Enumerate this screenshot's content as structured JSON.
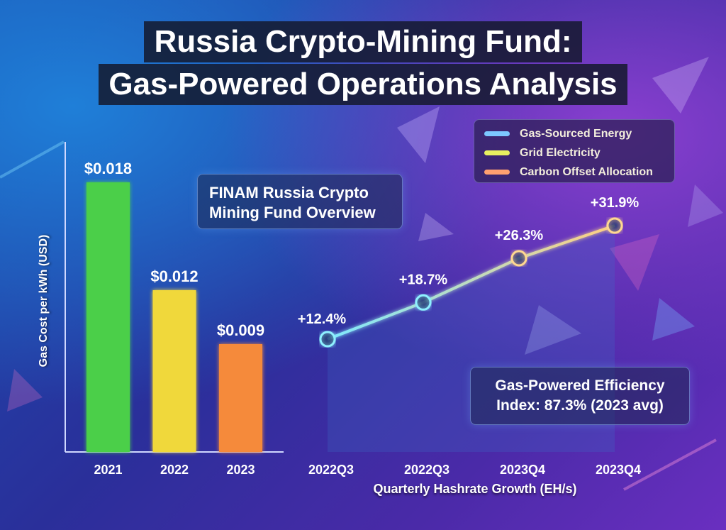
{
  "title_line1": "Russia Crypto-Mining Fund:",
  "title_line2": "Gas-Powered Operations Analysis",
  "overview_box": "FINAM Russia Crypto Mining Fund Overview",
  "efficiency_box": "Gas-Powered Efficiency Index: 87.3% (2023 avg)",
  "legend": [
    {
      "label": "Gas-Sourced Energy",
      "color": "#7cc8ff"
    },
    {
      "label": "Grid Electricity",
      "color": "#e8f060"
    },
    {
      "label": "Carbon Offset Allocation",
      "color": "#ffa070"
    }
  ],
  "chart_data": [
    {
      "type": "bar",
      "categories": [
        "2021",
        "2022",
        "2023"
      ],
      "values": [
        0.018,
        0.012,
        0.009
      ],
      "data_labels": [
        "$0.018",
        "$0.012",
        "$0.009"
      ],
      "ylabel": "Gas Cost per kWh (USD)",
      "colors": [
        "#4ccf4a",
        "#f0d83a",
        "#f58a3a"
      ],
      "ylim": [
        0.003,
        0.018
      ]
    },
    {
      "type": "line",
      "categories": [
        "2022Q3",
        "2022Q3",
        "2023Q4",
        "2023Q4"
      ],
      "values": [
        12.4,
        18.7,
        26.3,
        31.9
      ],
      "data_labels": [
        "+12.4%",
        "+18.7%",
        "+26.3%",
        "+31.9%"
      ],
      "xlabel": "Quarterly Hashrate Growth (EH/s)",
      "gradient_colors": [
        "#7ee8ff",
        "#ffcf80"
      ]
    }
  ]
}
